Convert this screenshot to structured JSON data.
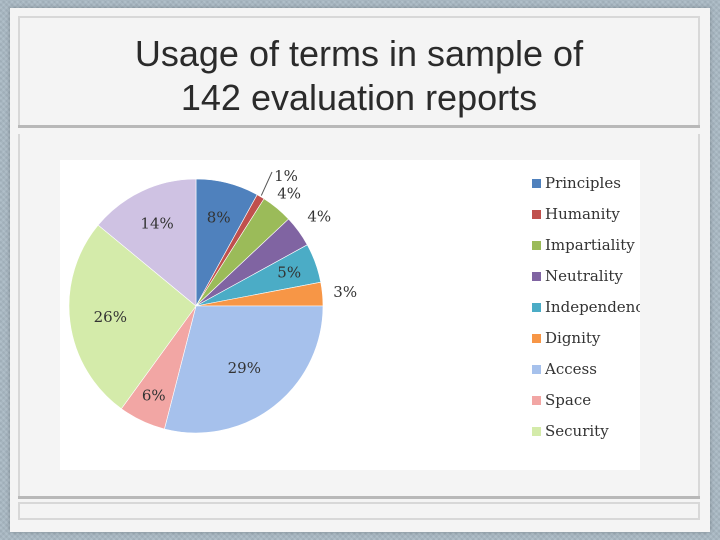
{
  "slide": {
    "title_line1": "Usage of terms in sample of",
    "title_line2": "142 evaluation reports"
  },
  "chart_data": {
    "type": "pie",
    "title": "",
    "legend": "right",
    "slices": [
      {
        "name": "Principles",
        "value": 8,
        "label": "8%",
        "color": "#4f81bd"
      },
      {
        "name": "Humanity",
        "value": 1,
        "label": "1%",
        "color": "#c0504d"
      },
      {
        "name": "Impartiality",
        "value": 4,
        "label": "4%",
        "color": "#9bbb59"
      },
      {
        "name": "Neutrality",
        "value": 4,
        "label": "4%",
        "color": "#8064a2"
      },
      {
        "name": "Independence",
        "value": 5,
        "label": "5%",
        "color": "#4bacc6"
      },
      {
        "name": "Dignity",
        "value": 3,
        "label": "3%",
        "color": "#f79646"
      },
      {
        "name": "Access",
        "value": 29,
        "label": "29%",
        "color": "#a6c1ec"
      },
      {
        "name": "Space",
        "value": 6,
        "label": "6%",
        "color": "#f2a6a4"
      },
      {
        "name": "Security",
        "value": 26,
        "label": "26%",
        "color": "#d4ebaa"
      },
      {
        "name": "",
        "value": 14,
        "label": "14%",
        "color": "#cfc2e3"
      }
    ]
  }
}
